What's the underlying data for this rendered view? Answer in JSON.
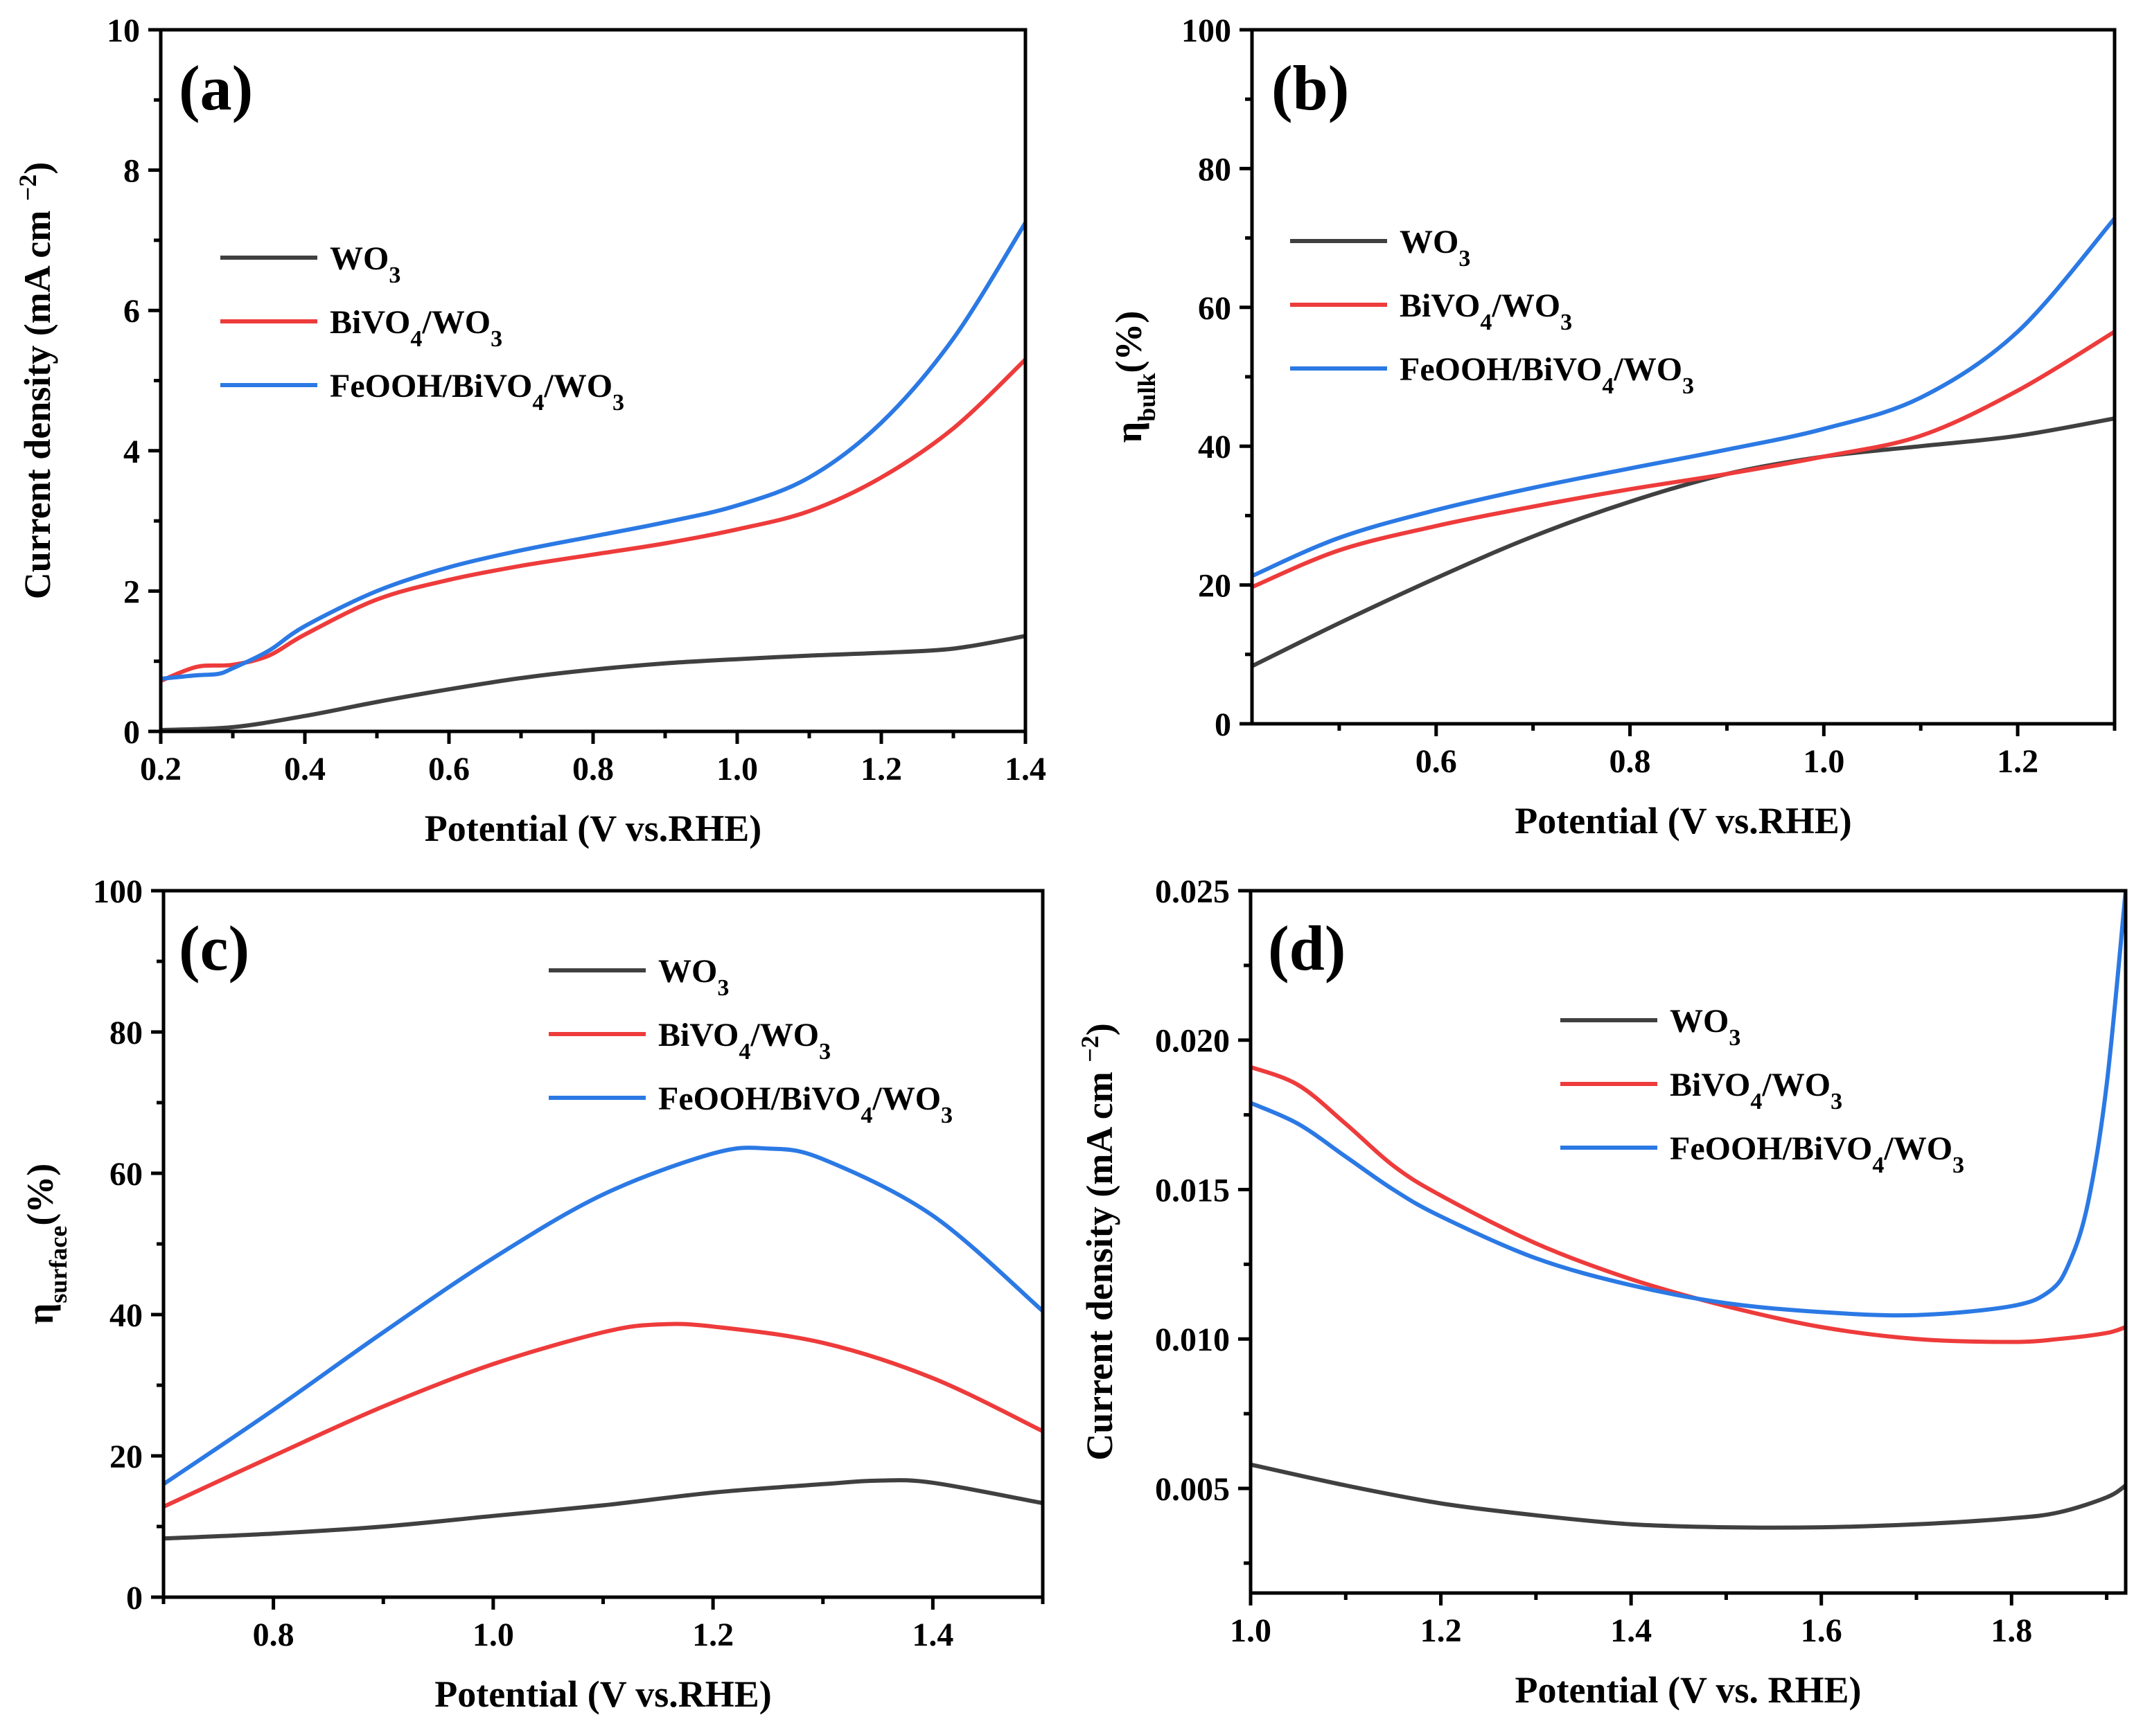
{
  "colors": {
    "WO3": "#404040",
    "BiVO4/WO3": "#ee3b3b",
    "FeOOH/BiVO4/WO3": "#2b79e4"
  },
  "chart_data": [
    {
      "id": "a",
      "type": "line",
      "panel_label": "(a)",
      "xlabel": "Potential (V vs.RHE)",
      "ylabel": "Current density (mA cm⁻²)",
      "xlim": [
        0.2,
        1.4
      ],
      "ylim": [
        0,
        10
      ],
      "xticks": [
        "0.2",
        "0.4",
        "0.6",
        "0.8",
        "1.0",
        "1.2",
        "1.4"
      ],
      "xtick_values": [
        0.2,
        0.4,
        0.6,
        0.8,
        1.0,
        1.2,
        1.4
      ],
      "yticks": [
        "0",
        "2",
        "4",
        "6",
        "8",
        "10"
      ],
      "ytick_values": [
        0,
        2,
        4,
        6,
        8,
        10
      ],
      "legend": "upper-left",
      "series": [
        {
          "name": "WO3",
          "color_key": "WO3",
          "x": [
            0.2,
            0.3,
            0.4,
            0.5,
            0.6,
            0.7,
            0.8,
            0.9,
            1.0,
            1.1,
            1.2,
            1.3,
            1.4
          ],
          "y": [
            0.02,
            0.06,
            0.22,
            0.42,
            0.6,
            0.76,
            0.88,
            0.97,
            1.03,
            1.08,
            1.12,
            1.18,
            1.36
          ]
        },
        {
          "name": "BiVO4/WO3",
          "color_key": "BiVO4/WO3",
          "x": [
            0.2,
            0.25,
            0.3,
            0.35,
            0.4,
            0.5,
            0.6,
            0.7,
            0.8,
            0.9,
            1.0,
            1.1,
            1.2,
            1.3,
            1.4
          ],
          "y": [
            0.72,
            0.92,
            0.95,
            1.08,
            1.38,
            1.88,
            2.16,
            2.36,
            2.52,
            2.68,
            2.88,
            3.14,
            3.62,
            4.32,
            5.3
          ]
        },
        {
          "name": "FeOOH/BiVO4/WO3",
          "color_key": "FeOOH/BiVO4/WO3",
          "x": [
            0.2,
            0.25,
            0.28,
            0.3,
            0.35,
            0.4,
            0.5,
            0.6,
            0.7,
            0.8,
            0.9,
            1.0,
            1.1,
            1.2,
            1.3,
            1.4
          ],
          "y": [
            0.75,
            0.8,
            0.82,
            0.9,
            1.15,
            1.5,
            2.0,
            2.34,
            2.58,
            2.78,
            2.98,
            3.22,
            3.62,
            4.4,
            5.6,
            7.25
          ]
        }
      ]
    },
    {
      "id": "b",
      "type": "line",
      "panel_label": "(b)",
      "xlabel": "Potential (V vs.RHE)",
      "ylabel": "ηbulk(%)",
      "ylabel_main": "η",
      "ylabel_sub": "bulk",
      "ylabel_rest": "(%)",
      "xlim": [
        0.41,
        1.3
      ],
      "ylim": [
        0,
        100
      ],
      "xticks": [
        "0.6",
        "0.8",
        "1.0",
        "1.2"
      ],
      "xtick_values": [
        0.6,
        0.8,
        1.0,
        1.2
      ],
      "yticks": [
        "0",
        "20",
        "40",
        "60",
        "80",
        "100"
      ],
      "ytick_values": [
        0,
        20,
        40,
        60,
        80,
        100
      ],
      "legend": "upper-left",
      "series": [
        {
          "name": "WO3",
          "color_key": "WO3",
          "x": [
            0.41,
            0.5,
            0.6,
            0.7,
            0.8,
            0.9,
            1.0,
            1.1,
            1.2,
            1.3
          ],
          "y": [
            8.3,
            14.5,
            21.0,
            27.0,
            32.0,
            36.0,
            38.5,
            40.0,
            41.5,
            44.0
          ]
        },
        {
          "name": "BiVO4/WO3",
          "color_key": "BiVO4/WO3",
          "x": [
            0.41,
            0.5,
            0.6,
            0.7,
            0.8,
            0.9,
            1.0,
            1.1,
            1.2,
            1.3
          ],
          "y": [
            19.7,
            25.0,
            28.5,
            31.3,
            33.8,
            36.0,
            38.5,
            41.5,
            48.0,
            56.5
          ]
        },
        {
          "name": "FeOOH/BiVO4/WO3",
          "color_key": "FeOOH/BiVO4/WO3",
          "x": [
            0.41,
            0.5,
            0.6,
            0.7,
            0.8,
            0.9,
            1.0,
            1.1,
            1.2,
            1.3
          ],
          "y": [
            21.3,
            26.8,
            30.8,
            34.0,
            36.8,
            39.5,
            42.5,
            47.0,
            56.5,
            72.8
          ]
        }
      ]
    },
    {
      "id": "c",
      "type": "line",
      "panel_label": "(c)",
      "xlabel": "Potential (V vs.RHE)",
      "ylabel": "ηsurface(%)",
      "ylabel_main": "η",
      "ylabel_sub": "surface",
      "ylabel_rest": "(%)",
      "xlim": [
        0.7,
        1.5
      ],
      "ylim": [
        0,
        100
      ],
      "xticks": [
        "0.8",
        "1.0",
        "1.2",
        "1.4"
      ],
      "xtick_values": [
        0.8,
        1.0,
        1.2,
        1.4
      ],
      "yticks": [
        "0",
        "20",
        "40",
        "60",
        "80",
        "100"
      ],
      "ytick_values": [
        0,
        20,
        40,
        60,
        80,
        100
      ],
      "legend": "upper-right",
      "series": [
        {
          "name": "WO3",
          "color_key": "WO3",
          "x": [
            0.7,
            0.8,
            0.9,
            1.0,
            1.1,
            1.2,
            1.3,
            1.35,
            1.4,
            1.5
          ],
          "y": [
            8.3,
            9.0,
            10.0,
            11.5,
            13.0,
            14.8,
            16.0,
            16.5,
            16.2,
            13.3
          ]
        },
        {
          "name": "BiVO4/WO3",
          "color_key": "BiVO4/WO3",
          "x": [
            0.7,
            0.8,
            0.9,
            1.0,
            1.1,
            1.15,
            1.2,
            1.3,
            1.4,
            1.5
          ],
          "y": [
            12.8,
            20.0,
            27.0,
            33.0,
            37.5,
            38.6,
            38.3,
            36.0,
            31.0,
            23.5
          ]
        },
        {
          "name": "FeOOH/BiVO4/WO3",
          "color_key": "FeOOH/BiVO4/WO3",
          "x": [
            0.7,
            0.8,
            0.9,
            1.0,
            1.1,
            1.2,
            1.25,
            1.3,
            1.4,
            1.5
          ],
          "y": [
            16.0,
            26.5,
            37.5,
            48.0,
            57.0,
            62.8,
            63.5,
            62.0,
            54.0,
            40.5
          ]
        }
      ]
    },
    {
      "id": "d",
      "type": "line",
      "panel_label": "(d)",
      "xlabel": "Potential (V vs. RHE)",
      "ylabel": "Current density (mA cm⁻²)",
      "xlim": [
        1.0,
        1.92
      ],
      "ylim": [
        0.0015,
        0.025
      ],
      "xticks": [
        "1.0",
        "1.2",
        "1.4",
        "1.6",
        "1.8"
      ],
      "xtick_values": [
        1.0,
        1.2,
        1.4,
        1.6,
        1.8
      ],
      "yticks": [
        "0.005",
        "0.010",
        "0.015",
        "0.020",
        "0.025"
      ],
      "ytick_values": [
        0.005,
        0.01,
        0.015,
        0.02,
        0.025
      ],
      "legend": "upper-center",
      "series": [
        {
          "name": "WO3",
          "color_key": "WO3",
          "x": [
            1.0,
            1.1,
            1.2,
            1.3,
            1.4,
            1.5,
            1.6,
            1.7,
            1.8,
            1.85,
            1.9,
            1.92
          ],
          "y": [
            0.0058,
            0.0051,
            0.0045,
            0.0041,
            0.0038,
            0.0037,
            0.0037,
            0.0038,
            0.004,
            0.0042,
            0.0047,
            0.0051
          ]
        },
        {
          "name": "BiVO4/WO3",
          "color_key": "BiVO4/WO3",
          "x": [
            1.0,
            1.05,
            1.1,
            1.15,
            1.2,
            1.3,
            1.4,
            1.5,
            1.6,
            1.7,
            1.8,
            1.85,
            1.9,
            1.92
          ],
          "y": [
            0.0191,
            0.0185,
            0.0172,
            0.0158,
            0.0148,
            0.0132,
            0.012,
            0.0111,
            0.0104,
            0.01,
            0.0099,
            0.01,
            0.0102,
            0.0104
          ]
        },
        {
          "name": "FeOOH/BiVO4/WO3",
          "color_key": "FeOOH/BiVO4/WO3",
          "x": [
            1.0,
            1.05,
            1.1,
            1.15,
            1.2,
            1.3,
            1.4,
            1.5,
            1.6,
            1.7,
            1.8,
            1.84,
            1.86,
            1.88,
            1.9,
            1.92
          ],
          "y": [
            0.0179,
            0.0172,
            0.0161,
            0.015,
            0.0141,
            0.0127,
            0.0118,
            0.0112,
            0.0109,
            0.0108,
            0.0111,
            0.0116,
            0.0125,
            0.0145,
            0.0185,
            0.025
          ]
        }
      ]
    }
  ]
}
